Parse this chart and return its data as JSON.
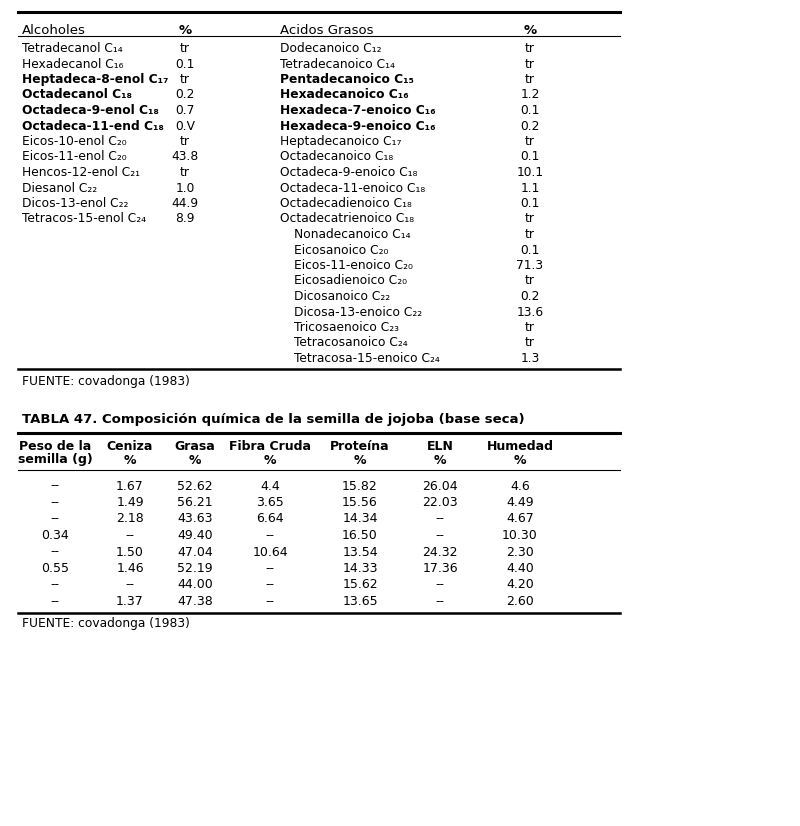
{
  "table1_header": [
    "Alcoholes",
    "%",
    "Acidos Grasos",
    "%"
  ],
  "table1_left": [
    [
      "Tetradecanol C₁₄",
      "tr",
      false
    ],
    [
      "Hexadecanol C₁₆",
      "0.1",
      false
    ],
    [
      "Heptadeca-8-enol C₁₇",
      "tr",
      true
    ],
    [
      "Octadecanol C₁₈",
      "0.2",
      true
    ],
    [
      "Octadeca-9-enol C₁₈",
      "0.7",
      true
    ],
    [
      "Octadeca-11-end C₁₈",
      "0.V",
      true
    ],
    [
      "Eicos-10-enol C₂₀",
      "tr",
      false
    ],
    [
      "Eicos-11-enol C₂₀",
      "43.8",
      false
    ],
    [
      "Hencos-12-enol C₂₁",
      "tr",
      false
    ],
    [
      "Diesanol C₂₂",
      "1.0",
      false
    ],
    [
      "Dicos-13-enol C₂₂",
      "44.9",
      false
    ],
    [
      "Tetracos-15-enol C₂₄",
      "8.9",
      false
    ]
  ],
  "table1_right": [
    [
      "Dodecanoico C₁₂",
      "tr",
      false
    ],
    [
      "Tetradecanoico C₁₄",
      "tr",
      false
    ],
    [
      "Pentadecanoico C₁₅",
      "tr",
      true
    ],
    [
      "Hexadecanoico C₁₆",
      "1.2",
      true
    ],
    [
      "Hexadeca-7-enoico C₁₆",
      "0.1",
      true
    ],
    [
      "Hexadeca-9-enoico C₁₆",
      "0.2",
      true
    ],
    [
      "Heptadecanoico C₁₇",
      "tr",
      false
    ],
    [
      "Octadecanoico C₁₈",
      "0.1",
      false
    ],
    [
      "Octadeca-9-enoico C₁₈",
      "10.1",
      false
    ],
    [
      "Octadeca-11-enoico C₁₈",
      "1.1",
      false
    ],
    [
      "Octadecadienoico C₁₈",
      "0.1",
      false
    ],
    [
      "Octadecatrienoico C₁₈",
      "tr",
      false
    ],
    [
      "Nonadecanoico C₁₄",
      "tr",
      false
    ],
    [
      "Eicosanoico C₂₀",
      "0.1",
      false
    ],
    [
      "Eicos-11-enoico C₂₀",
      "71.3",
      false
    ],
    [
      "Eicosadienoico C₂₀",
      "tr",
      false
    ],
    [
      "Dicosanoico C₂₂",
      "0.2",
      false
    ],
    [
      "Dicosa-13-enoico C₂₂",
      "13.6",
      false
    ],
    [
      "Tricosaenoico C₂₃",
      "tr",
      false
    ],
    [
      "Tetracosanoico C₂₄",
      "tr",
      false
    ],
    [
      "Tetracosa-15-enoico C₂₄",
      "1.3",
      false
    ]
  ],
  "fuente1": "FUENTE: covadonga (1983)",
  "title2": "TABLA 47. Composición química de la semilla de jojoba (base seca)",
  "table2_headers": [
    [
      "Peso de la",
      "semilla (g)"
    ],
    [
      "Ceniza",
      "%"
    ],
    [
      "Grasa",
      "%"
    ],
    [
      "Fibra Cruda",
      "%"
    ],
    [
      "Proteína",
      "%"
    ],
    [
      "ELN",
      "%"
    ],
    [
      "Humedad",
      "%"
    ]
  ],
  "table2_rows": [
    [
      "--",
      "1.67",
      "52.62",
      "4.4",
      "15.82",
      "26.04",
      "4.6"
    ],
    [
      "--",
      "1.49",
      "56.21",
      "3.65",
      "15.56",
      "22.03",
      "4.49"
    ],
    [
      "--",
      "2.18",
      "43.63",
      "6.64",
      "14.34",
      "--",
      "4.67"
    ],
    [
      "0.34",
      "--",
      "49.40",
      "--",
      "16.50",
      "--",
      "10.30"
    ],
    [
      "--",
      "1.50",
      "47.04",
      "10.64",
      "13.54",
      "24.32",
      "2.30"
    ],
    [
      "0.55",
      "1.46",
      "52.19",
      "--",
      "14.33",
      "17.36",
      "4.40"
    ],
    [
      "--",
      "--",
      "44.00",
      "--",
      "15.62",
      "--",
      "4.20"
    ],
    [
      "--",
      "1.37",
      "47.38",
      "--",
      "13.65",
      "--",
      "2.60"
    ]
  ],
  "fuente2": "FUENTE: covadonga (1983)",
  "bg_color": "#ffffff",
  "text_color": "#000000",
  "line_color": "#000000"
}
